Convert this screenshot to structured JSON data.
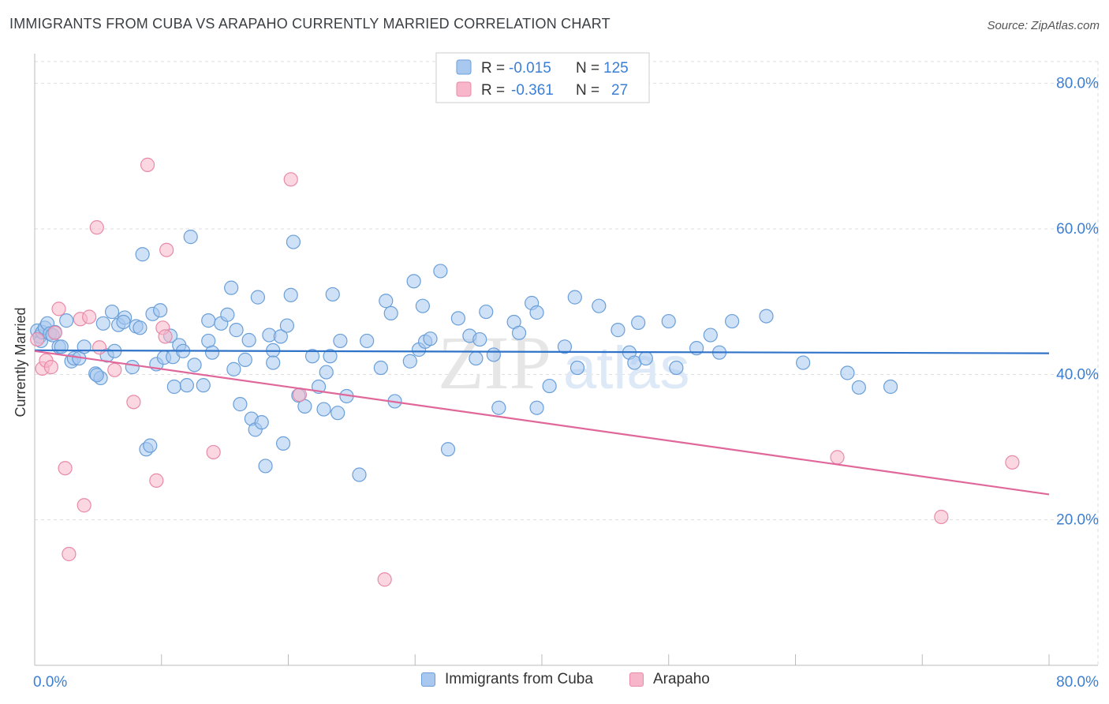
{
  "title": "IMMIGRANTS FROM CUBA VS ARAPAHO CURRENTLY MARRIED CORRELATION CHART",
  "source": "Source: ZipAtlas.com",
  "watermark": {
    "zip": "ZIP",
    "atlas": "atlas"
  },
  "colors": {
    "cuba_fill": "#a8c8f0",
    "cuba_stroke": "#6a9fd8",
    "cuba_line": "#2f73c9",
    "arapaho_fill": "#f7b6c9",
    "arapaho_stroke": "#e88aa8",
    "arapaho_line": "#e0679a",
    "tick_label": "#3b7fd4",
    "grid": "#dddddd"
  },
  "legend_top": {
    "rows": [
      {
        "r_label": "R =",
        "r_value": "-0.015",
        "n_label": "N =",
        "n_value": "125"
      },
      {
        "r_label": "R =",
        "r_value": "-0.361",
        "n_label": "N =",
        "n_value": "27"
      }
    ]
  },
  "legend_bottom": {
    "cuba": "Immigrants from Cuba",
    "arapaho": "Arapaho"
  },
  "chart_data": {
    "type": "scatter",
    "title": "IMMIGRANTS FROM CUBA VS ARAPAHO CURRENTLY MARRIED CORRELATION CHART",
    "xlabel": "",
    "ylabel": "Currently Married",
    "xlim": [
      0,
      80
    ],
    "ylim": [
      0,
      83
    ],
    "x_tick_labels": [
      "0.0%",
      "80.0%"
    ],
    "y_ticks": [
      20,
      40,
      60,
      80
    ],
    "y_tick_labels": [
      "20.0%",
      "40.0%",
      "60.0%",
      "80.0%"
    ],
    "grid": true,
    "legend_position": "top-center",
    "series": [
      {
        "name": "Immigrants from Cuba",
        "r": -0.015,
        "n": 125,
        "trend": {
          "x": [
            0,
            80
          ],
          "y": [
            43.3,
            42.9
          ]
        },
        "points": [
          [
            0.2,
            46.0
          ],
          [
            0.4,
            45.2
          ],
          [
            0.5,
            44.6
          ],
          [
            0.6,
            45.8
          ],
          [
            0.8,
            46.4
          ],
          [
            1.0,
            47.0
          ],
          [
            1.2,
            45.6
          ],
          [
            1.4,
            45.4
          ],
          [
            1.6,
            45.8
          ],
          [
            1.9,
            43.8
          ],
          [
            2.1,
            43.8
          ],
          [
            2.5,
            47.4
          ],
          [
            2.9,
            41.8
          ],
          [
            3.1,
            42.2
          ],
          [
            3.5,
            42.2
          ],
          [
            3.9,
            43.8
          ],
          [
            4.8,
            40.1
          ],
          [
            5.2,
            39.5
          ],
          [
            4.9,
            39.9
          ],
          [
            5.4,
            47.0
          ],
          [
            5.7,
            42.6
          ],
          [
            6.1,
            48.6
          ],
          [
            6.3,
            43.2
          ],
          [
            6.6,
            46.8
          ],
          [
            7.1,
            47.8
          ],
          [
            7.0,
            47.2
          ],
          [
            7.7,
            41.0
          ],
          [
            8.0,
            46.6
          ],
          [
            8.3,
            46.4
          ],
          [
            8.5,
            56.5
          ],
          [
            8.8,
            29.7
          ],
          [
            9.1,
            30.2
          ],
          [
            9.3,
            48.3
          ],
          [
            9.6,
            41.4
          ],
          [
            9.9,
            48.8
          ],
          [
            10.2,
            42.3
          ],
          [
            10.7,
            45.3
          ],
          [
            10.9,
            42.4
          ],
          [
            11.0,
            38.3
          ],
          [
            11.4,
            44.0
          ],
          [
            11.7,
            43.2
          ],
          [
            12.0,
            38.5
          ],
          [
            12.3,
            58.9
          ],
          [
            12.6,
            41.3
          ],
          [
            13.3,
            38.5
          ],
          [
            13.7,
            47.4
          ],
          [
            13.7,
            44.6
          ],
          [
            14.0,
            43.0
          ],
          [
            14.7,
            47.0
          ],
          [
            15.2,
            48.2
          ],
          [
            15.5,
            51.9
          ],
          [
            15.7,
            40.7
          ],
          [
            15.9,
            46.1
          ],
          [
            16.2,
            35.9
          ],
          [
            16.6,
            42.0
          ],
          [
            16.9,
            44.7
          ],
          [
            17.1,
            33.9
          ],
          [
            17.4,
            32.4
          ],
          [
            17.6,
            50.6
          ],
          [
            17.9,
            33.4
          ],
          [
            18.2,
            27.4
          ],
          [
            18.5,
            45.4
          ],
          [
            18.8,
            43.3
          ],
          [
            18.8,
            41.6
          ],
          [
            19.4,
            45.2
          ],
          [
            19.6,
            30.5
          ],
          [
            19.9,
            46.7
          ],
          [
            20.2,
            50.9
          ],
          [
            20.4,
            58.2
          ],
          [
            20.8,
            37.1
          ],
          [
            21.3,
            35.6
          ],
          [
            21.9,
            42.5
          ],
          [
            22.4,
            38.3
          ],
          [
            22.8,
            35.2
          ],
          [
            23.0,
            40.3
          ],
          [
            23.3,
            42.5
          ],
          [
            23.5,
            51.0
          ],
          [
            23.9,
            34.7
          ],
          [
            24.1,
            44.6
          ],
          [
            24.6,
            37.0
          ],
          [
            25.6,
            26.2
          ],
          [
            26.2,
            44.6
          ],
          [
            27.3,
            40.9
          ],
          [
            27.7,
            50.1
          ],
          [
            28.1,
            48.4
          ],
          [
            28.4,
            36.3
          ],
          [
            29.6,
            41.8
          ],
          [
            29.9,
            52.8
          ],
          [
            30.3,
            43.4
          ],
          [
            30.6,
            49.4
          ],
          [
            30.8,
            44.5
          ],
          [
            31.2,
            44.9
          ],
          [
            32.0,
            54.2
          ],
          [
            32.6,
            29.7
          ],
          [
            33.4,
            47.7
          ],
          [
            34.3,
            45.3
          ],
          [
            34.8,
            42.2
          ],
          [
            35.1,
            44.8
          ],
          [
            35.6,
            48.6
          ],
          [
            36.2,
            42.7
          ],
          [
            36.6,
            35.4
          ],
          [
            37.8,
            47.2
          ],
          [
            38.2,
            45.7
          ],
          [
            39.2,
            49.8
          ],
          [
            39.6,
            48.5
          ],
          [
            39.6,
            35.4
          ],
          [
            40.6,
            38.4
          ],
          [
            41.8,
            43.8
          ],
          [
            42.6,
            50.6
          ],
          [
            42.8,
            40.9
          ],
          [
            44.5,
            49.4
          ],
          [
            46.0,
            46.1
          ],
          [
            46.9,
            43.0
          ],
          [
            47.3,
            41.6
          ],
          [
            47.6,
            47.1
          ],
          [
            48.2,
            42.2
          ],
          [
            50.0,
            47.3
          ],
          [
            50.6,
            40.9
          ],
          [
            52.2,
            43.6
          ],
          [
            53.3,
            45.4
          ],
          [
            54.0,
            43.0
          ],
          [
            55.0,
            47.3
          ],
          [
            57.7,
            48.0
          ],
          [
            60.6,
            41.6
          ],
          [
            64.1,
            40.2
          ],
          [
            65.0,
            38.2
          ],
          [
            67.5,
            38.3
          ]
        ]
      },
      {
        "name": "Arapaho",
        "r": -0.361,
        "n": 27,
        "trend": {
          "x": [
            0,
            80
          ],
          "y": [
            43.2,
            23.5
          ]
        },
        "points": [
          [
            0.2,
            44.8
          ],
          [
            0.6,
            40.8
          ],
          [
            0.9,
            41.9
          ],
          [
            1.3,
            41.0
          ],
          [
            1.6,
            45.7
          ],
          [
            1.9,
            49.0
          ],
          [
            2.4,
            27.1
          ],
          [
            2.7,
            15.3
          ],
          [
            3.6,
            47.6
          ],
          [
            3.9,
            22.0
          ],
          [
            4.3,
            47.9
          ],
          [
            4.9,
            60.2
          ],
          [
            5.1,
            43.7
          ],
          [
            6.3,
            40.6
          ],
          [
            7.8,
            36.2
          ],
          [
            8.9,
            68.8
          ],
          [
            9.6,
            25.4
          ],
          [
            10.1,
            46.4
          ],
          [
            10.3,
            45.2
          ],
          [
            10.4,
            57.1
          ],
          [
            14.1,
            29.3
          ],
          [
            20.2,
            66.8
          ],
          [
            20.9,
            37.2
          ],
          [
            27.6,
            11.8
          ],
          [
            63.3,
            28.6
          ],
          [
            71.5,
            20.4
          ],
          [
            77.1,
            27.9
          ]
        ]
      }
    ]
  }
}
